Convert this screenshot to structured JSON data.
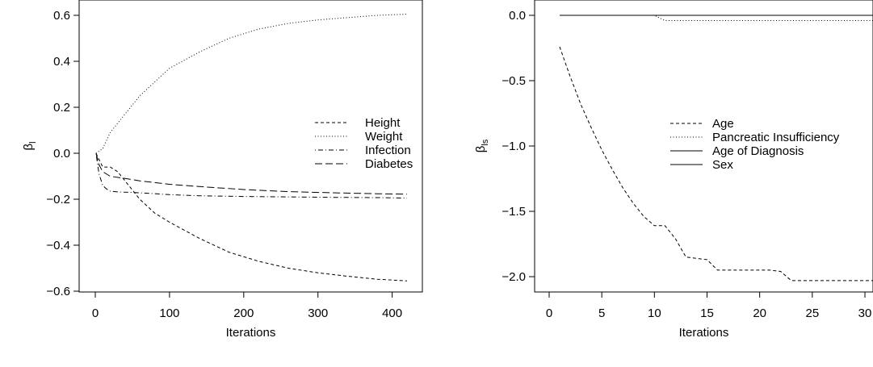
{
  "chart_data": [
    {
      "type": "line",
      "xlabel": "Iterations",
      "ylabel": "β",
      "ylabel_sub": "l",
      "xlim": [
        0,
        420
      ],
      "ylim": [
        -0.6,
        0.6
      ],
      "xticks": [
        0,
        100,
        200,
        300,
        400
      ],
      "yticks": [
        -0.6,
        -0.4,
        -0.2,
        0.0,
        0.2,
        0.4,
        0.6
      ],
      "ytick_labels": [
        "−0.6",
        "−0.4",
        "−0.2",
        "0.0",
        "0.2",
        "0.4",
        "0.6"
      ],
      "legend_position": "right",
      "series": [
        {
          "name": "Height",
          "dash": "dashed-short",
          "x": [
            1,
            10,
            20,
            30,
            40,
            60,
            80,
            100,
            140,
            180,
            220,
            260,
            300,
            340,
            380,
            420
          ],
          "y": [
            0,
            -0.06,
            -0.06,
            -0.08,
            -0.12,
            -0.2,
            -0.26,
            -0.3,
            -0.37,
            -0.43,
            -0.47,
            -0.5,
            -0.52,
            -0.535,
            -0.548,
            -0.555
          ]
        },
        {
          "name": "Weight",
          "dash": "dotted",
          "x": [
            1,
            10,
            20,
            40,
            60,
            80,
            100,
            140,
            180,
            220,
            260,
            300,
            340,
            380,
            420
          ],
          "y": [
            0,
            0.02,
            0.09,
            0.17,
            0.25,
            0.31,
            0.37,
            0.44,
            0.5,
            0.54,
            0.565,
            0.58,
            0.59,
            0.6,
            0.605
          ]
        },
        {
          "name": "Infection",
          "dash": "dotdash",
          "x": [
            1,
            5,
            10,
            15,
            20,
            30,
            60,
            100,
            140,
            200,
            260,
            320,
            380,
            420
          ],
          "y": [
            0,
            -0.09,
            -0.14,
            -0.155,
            -0.165,
            -0.168,
            -0.172,
            -0.18,
            -0.185,
            -0.188,
            -0.19,
            -0.192,
            -0.193,
            -0.195
          ]
        },
        {
          "name": "Diabetes",
          "dash": "longdash",
          "x": [
            1,
            5,
            10,
            20,
            40,
            60,
            100,
            140,
            200,
            260,
            320,
            380,
            420
          ],
          "y": [
            0,
            -0.05,
            -0.08,
            -0.1,
            -0.11,
            -0.12,
            -0.135,
            -0.145,
            -0.158,
            -0.167,
            -0.172,
            -0.176,
            -0.178
          ]
        }
      ]
    },
    {
      "type": "line",
      "xlabel": "Iterations",
      "ylabel": "β",
      "ylabel_sub": "ls",
      "xlim": [
        0,
        30
      ],
      "ylim": [
        -2.0,
        0.0
      ],
      "xticks": [
        0,
        5,
        10,
        15,
        20,
        25,
        30
      ],
      "yticks": [
        -2.0,
        -1.5,
        -1.0,
        -0.5,
        0.0
      ],
      "ytick_labels": [
        "−2.0",
        "−1.5",
        "−1.0",
        "−0.5",
        "0.0"
      ],
      "legend_position": "right",
      "series": [
        {
          "name": "Age",
          "dash": "dashed-short",
          "x": [
            1,
            2,
            3,
            4,
            5,
            6,
            7,
            8,
            9,
            10,
            11,
            12,
            13,
            14,
            15,
            16,
            17,
            18,
            19,
            20,
            21,
            22,
            23,
            24,
            25,
            26,
            27,
            28,
            29,
            30,
            31
          ],
          "y": [
            -0.24,
            -0.47,
            -0.68,
            -0.86,
            -1.03,
            -1.18,
            -1.32,
            -1.44,
            -1.54,
            -1.61,
            -1.61,
            -1.71,
            -1.85,
            -1.86,
            -1.87,
            -1.95,
            -1.95,
            -1.95,
            -1.95,
            -1.95,
            -1.95,
            -1.96,
            -2.03,
            -2.03,
            -2.03,
            -2.03,
            -2.03,
            -2.03,
            -2.03,
            -2.03,
            -2.03
          ]
        },
        {
          "name": "Pancreatic Insufficiency",
          "dash": "dotted",
          "x": [
            1,
            10,
            11,
            31
          ],
          "y": [
            0,
            0,
            -0.04,
            -0.04
          ]
        },
        {
          "name": "Age of Diagnosis",
          "dash": "solid",
          "x": [
            1,
            31
          ],
          "y": [
            0,
            0
          ]
        },
        {
          "name": "Sex",
          "dash": "solid",
          "x": [
            1,
            31
          ],
          "y": [
            0,
            0
          ]
        }
      ]
    }
  ]
}
